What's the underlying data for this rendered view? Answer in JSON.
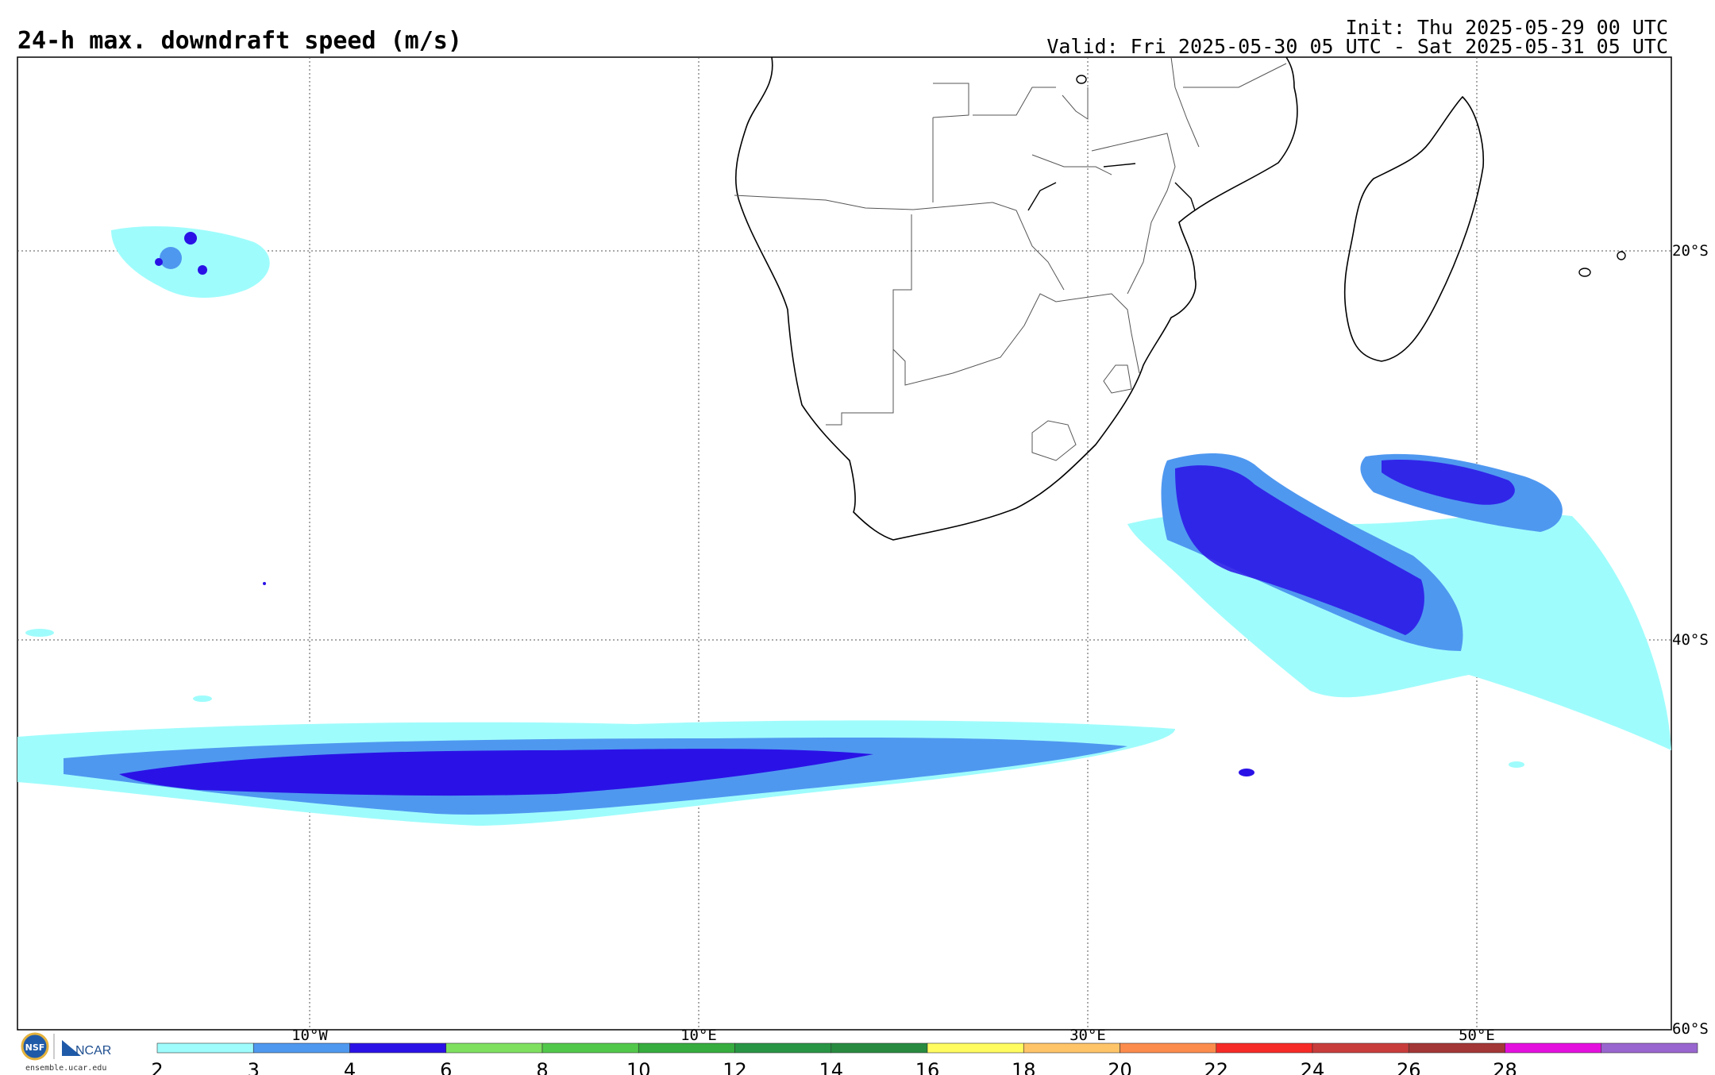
{
  "header": {
    "title": "24-h max. downdraft speed (m/s)",
    "init": "Init: Thu 2025-05-29 00 UTC",
    "valid": "Valid: Fri 2025-05-30 05 UTC - Sat 2025-05-31 05 UTC"
  },
  "map": {
    "lon_labels": [
      "10°W",
      "10°E",
      "30°E",
      "50°E"
    ],
    "lat_labels": [
      "20°S",
      "40°S",
      "60°S"
    ]
  },
  "colorbar": {
    "ticks": [
      "2",
      "3",
      "4",
      "6",
      "8",
      "10",
      "12",
      "14",
      "16",
      "18",
      "20",
      "22",
      "24",
      "26",
      "28"
    ],
    "colors": [
      "#9ffcfc",
      "#4f98f0",
      "#2a12e6",
      "#7fe060",
      "#52c84a",
      "#36ad3e",
      "#279543",
      "#278a3f",
      "#fffc60",
      "#ffc468",
      "#fc8c4c",
      "#f62a26",
      "#c83c3c",
      "#a33636",
      "#e410de",
      "#9866ce"
    ]
  },
  "branding": {
    "logo_nsf": "NSF",
    "logo_ncar": "NCAR",
    "url": "ensemble.ucar.edu"
  }
}
